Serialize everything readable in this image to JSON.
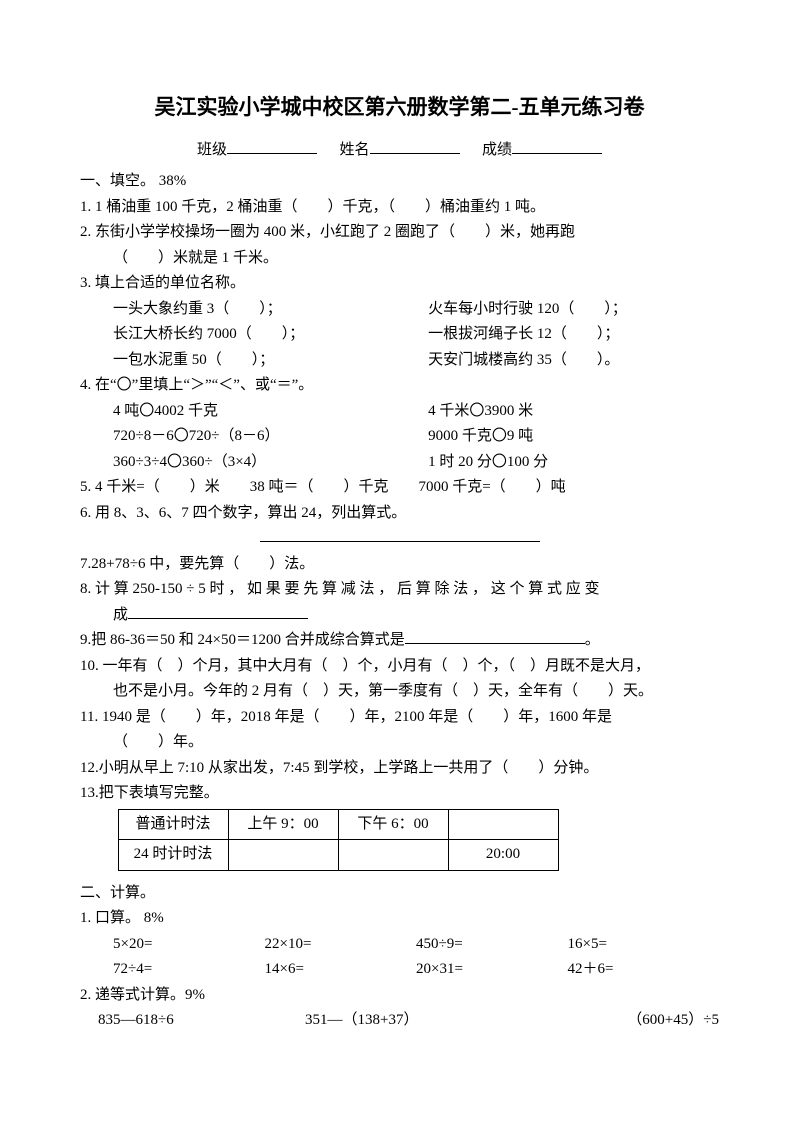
{
  "title": "吴江实验小学城中校区第六册数学第二-五单元练习卷",
  "header": {
    "class_label": "班级",
    "name_label": "姓名",
    "score_label": "成绩"
  },
  "s1": {
    "head": "一、填空。 38%",
    "q1": "1. 1 桶油重 100 千克，2 桶油重（　　）千克，（　　）桶油重约 1 吨。",
    "q2a": "2. 东街小学学校操场一圈为 400 米，小红跑了 2 圈跑了（　　）米，她再跑",
    "q2b": "（　　）米就是 1 千米。",
    "q3": "3. 填上合适的单位名称。",
    "q3r1a": "一头大象约重 3（　　）；",
    "q3r1b": "火车每小时行驶 120（　　）；",
    "q3r2a": "长江大桥长约 7000（　　）；",
    "q3r2b": "一根拔河绳子长 12（　　）；",
    "q3r3a": "一包水泥重 50（　　）；",
    "q3r3b": "天安门城楼高约 35（　　）。",
    "q4": "4. 在“〇”里填上“＞”“＜”、或“＝”。",
    "q4r1a": "4 吨〇4002 千克",
    "q4r1b": "4 千米〇3900 米",
    "q4r2a": "720÷8－6〇720÷（8－6）",
    "q4r2b": "9000 千克〇9 吨",
    "q4r3a": "360÷3÷4〇360÷（3×4）",
    "q4r3b": "1 时 20 分〇100 分",
    "q5": "5. 4 千米=（　　）米　　38 吨＝（　　）千克　　7000 千克=（　　）吨",
    "q6": "6. 用 8、3、6、7 四个数字，算出 24，列出算式。",
    "q7": "7.28+78÷6 中，要先算（　　）法。",
    "q8a": "8. 计 算 250-150 ÷ 5 时 ， 如 果 要 先 算 减 法 ， 后 算 除 法 ， 这 个 算 式 应 变",
    "q8b": "成",
    "q9": "9.把 86-36＝50 和 24×50＝1200 合并成综合算式是",
    "q10a": "10. 一年有（　）个月，其中大月有（　）个，小月有（　）个，（　）月既不是大月，",
    "q10b": "也不是小月。今年的 2 月有（　）天，第一季度有（　）天，全年有（　　）天。",
    "q11a": "11. 1940 是（　　）年，2018 年是（　　）年，2100 年是（　　）年，1600 年是",
    "q11b": "（　　）年。",
    "q12": "12.小明从早上 7:10 从家出发，7:45 到学校，上学路上一共用了（　　）分钟。",
    "q13": "13.把下表填写完整。"
  },
  "table": {
    "r1c1": "普通计时法",
    "r1c2": "上午 9：00",
    "r1c3": "下午 6：00",
    "r1c4": "",
    "r2c1": "24 时计时法",
    "r2c2": "",
    "r2c3": "",
    "r2c4": "20:00"
  },
  "s2": {
    "head": "二、计算。",
    "q1": "1. 口算。 8%",
    "r1c1": "5×20=",
    "r1c2": "22×10=",
    "r1c3": "450÷9=",
    "r1c4": "16×5=",
    "r2c1": "72÷4=",
    "r2c2": "14×6=",
    "r2c3": "20×31=",
    "r2c4": "42＋6=",
    "q2": " 2. 递等式计算。9%",
    "e1": "835—618÷6",
    "e2": "351—（138+37）",
    "e3": "（600+45）÷5"
  }
}
